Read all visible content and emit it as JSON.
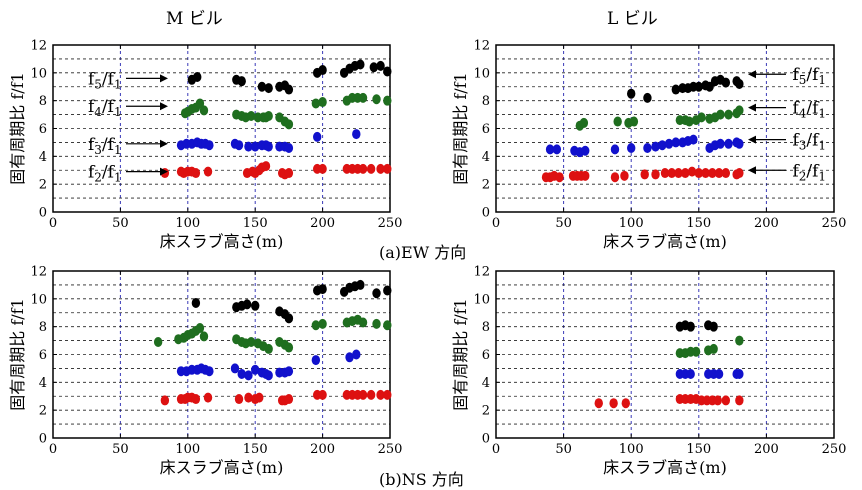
{
  "headings": {
    "m_building": "M ビル",
    "l_building": "L ビル"
  },
  "captions": {
    "ew": "(a)EW 方向",
    "ns": "(b)NS 方向"
  },
  "colors": {
    "f2": "#dd1111",
    "f3": "#1111cc",
    "f4": "#1f6e1f",
    "f5": "#000000",
    "grid": "#3a3ab8"
  },
  "chart_data": [
    {
      "id": "ew_m",
      "type": "scatter",
      "title": "",
      "xlabel": "床スラブ高さ(m)",
      "ylabel": "固有周期比 f/f1",
      "xlim": [
        0,
        250
      ],
      "ylim": [
        0,
        12
      ],
      "xticks": [
        0,
        50,
        100,
        150,
        200,
        250
      ],
      "yticks": [
        0,
        2,
        4,
        6,
        8,
        10,
        12
      ],
      "grid": true,
      "labels": [
        {
          "text": "f5/f1",
          "num": "f",
          "nsub": "5",
          "den": "f",
          "dsub": "1",
          "side": "left",
          "y": 9.6
        },
        {
          "text": "f4/f1",
          "num": "f",
          "nsub": "4",
          "den": "f",
          "dsub": "1",
          "side": "left",
          "y": 7.6
        },
        {
          "text": "f3/f1",
          "num": "f",
          "nsub": "3",
          "den": "f",
          "dsub": "1",
          "side": "left",
          "y": 4.9
        },
        {
          "text": "f2/f1",
          "num": "f",
          "nsub": "2",
          "den": "f",
          "dsub": "1",
          "side": "left",
          "y": 2.9
        }
      ],
      "series": [
        {
          "key": "f2",
          "x": [
            83,
            95,
            97,
            100,
            103,
            106,
            115,
            144,
            148,
            150,
            153,
            155,
            158,
            170,
            172,
            175,
            196,
            200,
            218,
            222,
            226,
            230,
            236,
            243,
            248
          ],
          "y": [
            2.8,
            2.9,
            2.8,
            2.9,
            2.9,
            2.8,
            2.9,
            2.8,
            2.9,
            2.8,
            3.0,
            3.2,
            3.3,
            2.8,
            2.7,
            2.8,
            3.1,
            3.1,
            3.1,
            3.1,
            3.1,
            3.1,
            3.1,
            3.1,
            3.1
          ]
        },
        {
          "key": "f3",
          "x": [
            95,
            99,
            103,
            107,
            110,
            113,
            116,
            135,
            138,
            145,
            150,
            155,
            158,
            160,
            168,
            172,
            175,
            196,
            225
          ],
          "y": [
            4.8,
            4.9,
            4.9,
            5.0,
            4.9,
            4.9,
            4.8,
            4.9,
            4.8,
            4.7,
            4.7,
            4.8,
            4.8,
            4.7,
            4.7,
            4.7,
            4.6,
            5.4,
            5.6
          ]
        },
        {
          "key": "f4",
          "x": [
            98,
            100,
            103,
            106,
            109,
            112,
            136,
            140,
            143,
            147,
            152,
            156,
            158,
            160,
            168,
            172,
            175,
            195,
            200,
            218,
            222,
            226,
            230,
            240,
            248
          ],
          "y": [
            7.1,
            7.2,
            7.4,
            7.5,
            7.8,
            7.3,
            7.0,
            6.9,
            6.8,
            6.9,
            6.8,
            6.8,
            6.8,
            6.9,
            6.8,
            6.5,
            6.3,
            7.8,
            7.9,
            8.0,
            8.2,
            8.2,
            8.2,
            8.1,
            8.0
          ]
        },
        {
          "key": "f5",
          "x": [
            103,
            107,
            136,
            140,
            155,
            160,
            168,
            172,
            175,
            196,
            200,
            216,
            220,
            224,
            228,
            238,
            243,
            248
          ],
          "y": [
            9.5,
            9.7,
            9.5,
            9.4,
            9.0,
            8.9,
            9.0,
            9.1,
            8.8,
            10.0,
            10.2,
            10.0,
            10.3,
            10.5,
            10.6,
            10.4,
            10.5,
            10.1
          ]
        }
      ]
    },
    {
      "id": "ew_l",
      "type": "scatter",
      "title": "",
      "xlabel": "床スラブ高さ(m)",
      "ylabel": "固有周期比 f/f1",
      "xlim": [
        0,
        250
      ],
      "ylim": [
        0,
        12
      ],
      "xticks": [
        0,
        50,
        100,
        150,
        200,
        250
      ],
      "yticks": [
        0,
        2,
        4,
        6,
        8,
        10,
        12
      ],
      "grid": true,
      "labels": [
        {
          "text": "f5/f1",
          "num": "f",
          "nsub": "5",
          "den": "f",
          "dsub": "1",
          "side": "right",
          "y": 9.9
        },
        {
          "text": "f4/f1",
          "num": "f",
          "nsub": "4",
          "den": "f",
          "dsub": "1",
          "side": "right",
          "y": 7.5
        },
        {
          "text": "f3/f1",
          "num": "f",
          "nsub": "3",
          "den": "f",
          "dsub": "1",
          "side": "right",
          "y": 5.2
        },
        {
          "text": "f2/f1",
          "num": "f",
          "nsub": "2",
          "den": "f",
          "dsub": "1",
          "side": "right",
          "y": 3.0
        }
      ],
      "series": [
        {
          "key": "f2",
          "x": [
            37,
            40,
            43,
            47,
            57,
            60,
            63,
            66,
            88,
            95,
            110,
            118,
            125,
            130,
            135,
            140,
            145,
            150,
            155,
            160,
            165,
            170,
            178,
            180
          ],
          "y": [
            2.5,
            2.5,
            2.6,
            2.5,
            2.6,
            2.6,
            2.6,
            2.6,
            2.5,
            2.6,
            2.7,
            2.7,
            2.8,
            2.8,
            2.8,
            2.8,
            2.9,
            2.8,
            2.8,
            2.8,
            2.8,
            2.8,
            2.7,
            2.8
          ]
        },
        {
          "key": "f3",
          "x": [
            40,
            45,
            58,
            62,
            66,
            88,
            100,
            112,
            118,
            123,
            128,
            133,
            138,
            142,
            146,
            158,
            162,
            166,
            172,
            178,
            180
          ],
          "y": [
            4.5,
            4.5,
            4.4,
            4.3,
            4.4,
            4.5,
            4.6,
            4.6,
            4.7,
            4.8,
            4.9,
            5.0,
            5.0,
            5.1,
            5.2,
            4.6,
            4.8,
            4.9,
            4.9,
            5.0,
            4.9
          ]
        },
        {
          "key": "f4",
          "x": [
            62,
            65,
            90,
            98,
            102,
            136,
            140,
            143,
            148,
            152,
            158,
            162,
            166,
            172,
            178,
            180
          ],
          "y": [
            6.2,
            6.4,
            6.5,
            6.4,
            6.5,
            6.6,
            6.6,
            6.5,
            6.6,
            6.8,
            6.7,
            6.8,
            7.0,
            7.0,
            7.1,
            7.3
          ]
        },
        {
          "key": "f5",
          "x": [
            100,
            112,
            133,
            138,
            142,
            146,
            150,
            155,
            158,
            162,
            166,
            170,
            178,
            180
          ],
          "y": [
            8.5,
            8.2,
            8.8,
            8.9,
            8.9,
            9.0,
            9.0,
            9.1,
            9.0,
            9.4,
            9.5,
            9.3,
            9.4,
            9.2
          ]
        }
      ]
    },
    {
      "id": "ns_m",
      "type": "scatter",
      "title": "",
      "xlabel": "床スラブ高さ(m)",
      "ylabel": "固有周期比 f/f1",
      "xlim": [
        0,
        250
      ],
      "ylim": [
        0,
        12
      ],
      "xticks": [
        0,
        50,
        100,
        150,
        200,
        250
      ],
      "yticks": [
        0,
        2,
        4,
        6,
        8,
        10,
        12
      ],
      "grid": true,
      "labels": [],
      "series": [
        {
          "key": "f2",
          "x": [
            83,
            95,
            98,
            100,
            103,
            106,
            115,
            138,
            145,
            150,
            153,
            170,
            172,
            175,
            196,
            200,
            218,
            222,
            226,
            230,
            236,
            243,
            248
          ],
          "y": [
            2.7,
            2.8,
            2.8,
            2.9,
            2.9,
            2.8,
            2.9,
            2.8,
            2.9,
            2.8,
            2.9,
            2.7,
            2.7,
            2.8,
            3.1,
            3.1,
            3.1,
            3.1,
            3.1,
            3.1,
            3.1,
            3.1,
            3.1
          ]
        },
        {
          "key": "f3",
          "x": [
            95,
            99,
            103,
            107,
            110,
            113,
            116,
            135,
            140,
            145,
            150,
            155,
            158,
            160,
            168,
            172,
            175,
            195,
            220,
            225
          ],
          "y": [
            4.8,
            4.8,
            4.9,
            4.9,
            5.0,
            4.9,
            4.8,
            5.0,
            4.6,
            4.5,
            4.9,
            4.7,
            4.6,
            4.5,
            4.7,
            4.7,
            4.8,
            5.6,
            5.8,
            6.0
          ]
        },
        {
          "key": "f4",
          "x": [
            78,
            93,
            97,
            100,
            103,
            106,
            109,
            112,
            136,
            140,
            143,
            147,
            152,
            156,
            160,
            168,
            172,
            175,
            195,
            200,
            218,
            222,
            226,
            230,
            240,
            248
          ],
          "y": [
            6.9,
            7.1,
            7.2,
            7.4,
            7.5,
            7.7,
            7.9,
            7.3,
            7.1,
            6.9,
            6.8,
            6.9,
            6.8,
            6.6,
            6.4,
            6.9,
            6.7,
            6.5,
            8.1,
            8.2,
            8.3,
            8.4,
            8.5,
            8.3,
            8.2,
            8.1
          ]
        },
        {
          "key": "f5",
          "x": [
            106,
            136,
            140,
            144,
            150,
            168,
            172,
            175,
            196,
            200,
            216,
            220,
            224,
            228,
            240,
            248
          ],
          "y": [
            9.7,
            9.4,
            9.5,
            9.6,
            9.5,
            9.1,
            8.9,
            8.6,
            10.6,
            10.7,
            10.5,
            10.8,
            10.9,
            11.0,
            10.4,
            10.6
          ]
        }
      ]
    },
    {
      "id": "ns_l",
      "type": "scatter",
      "title": "",
      "xlabel": "床スラブ高さ(m)",
      "ylabel": "固有周期比 f/f1",
      "xlim": [
        0,
        250
      ],
      "ylim": [
        0,
        12
      ],
      "xticks": [
        0,
        50,
        100,
        150,
        200,
        250
      ],
      "yticks": [
        0,
        2,
        4,
        6,
        8,
        10,
        12
      ],
      "grid": true,
      "labels": [],
      "series": [
        {
          "key": "f2",
          "x": [
            76,
            87,
            96,
            136,
            140,
            144,
            148,
            152,
            156,
            160,
            164,
            170,
            180
          ],
          "y": [
            2.5,
            2.5,
            2.5,
            2.8,
            2.8,
            2.8,
            2.8,
            2.7,
            2.7,
            2.7,
            2.7,
            2.7,
            2.7
          ]
        },
        {
          "key": "f3",
          "x": [
            136,
            140,
            144,
            157,
            161,
            165,
            178,
            180
          ],
          "y": [
            4.6,
            4.6,
            4.6,
            4.6,
            4.6,
            4.6,
            4.6,
            4.6
          ]
        },
        {
          "key": "f4",
          "x": [
            136,
            140,
            144,
            148,
            157,
            161,
            180
          ],
          "y": [
            6.1,
            6.1,
            6.2,
            6.2,
            6.3,
            6.4,
            7.0
          ]
        },
        {
          "key": "f5",
          "x": [
            136,
            140,
            144,
            157,
            161
          ],
          "y": [
            8.0,
            8.1,
            8.0,
            8.1,
            8.0
          ]
        }
      ]
    }
  ]
}
